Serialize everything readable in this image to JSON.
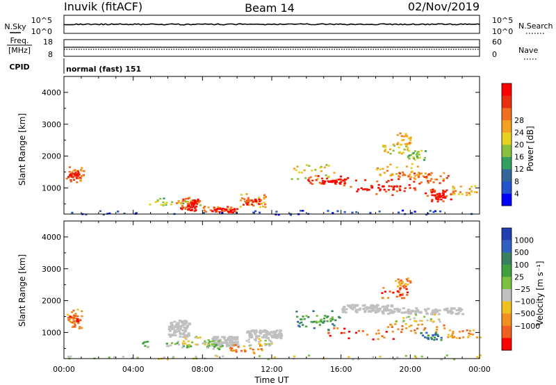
{
  "header": {
    "station": "Inuvik (fitACF)",
    "beam": "Beam 14",
    "date": "02/Nov/2019"
  },
  "nsky_panel": {
    "left_label": "N.Sky",
    "left_ticks": [
      "10^5",
      "10^0"
    ],
    "right_label": "N.Search",
    "right_ticks": [
      "10^5",
      "10^0"
    ]
  },
  "freq_panel": {
    "left_label_line1": "Freq.",
    "left_label_line2": "[MHz]",
    "left_ticks": [
      "18",
      "8"
    ],
    "right_label": "Nave",
    "right_ticks": [
      "60",
      "0"
    ]
  },
  "cpid": {
    "label": "CPID",
    "value": "normal (fast) 151"
  },
  "colors": {
    "background": "#ffffff",
    "axis": "#000000",
    "gray_scatter": "#c0c0c0"
  },
  "chart_data": [
    {
      "type": "heatmap",
      "panel": "power",
      "ylabel": "Slant Range [km]",
      "xlabel": "",
      "x_ticks": [
        "00:00",
        "04:00",
        "08:00",
        "12:00",
        "16:00",
        "20:00",
        "00:00"
      ],
      "x_range_hours": [
        0,
        24
      ],
      "y_ticks": [
        1000,
        2000,
        3000,
        4000
      ],
      "ylim": [
        180,
        4500
      ],
      "colorbar": {
        "label": "Power [dB]",
        "ticks": [
          "4",
          "8",
          "12",
          "16",
          "20",
          "24",
          "28"
        ],
        "colors": [
          "#0000ff",
          "#2255cc",
          "#336699",
          "#33a060",
          "#88c040",
          "#e8d020",
          "#f4a020",
          "#f07020",
          "#e83010",
          "#ff0000"
        ]
      },
      "regions": [
        {
          "t": [
            0.1,
            1.1
          ],
          "r": [
            1150,
            1750
          ],
          "level": 7
        },
        {
          "t": [
            0.2,
            0.9
          ],
          "r": [
            1300,
            1550
          ],
          "level": 8
        },
        {
          "t": [
            4.5,
            7.9
          ],
          "r": [
            480,
            700
          ],
          "level": 4
        },
        {
          "t": [
            6.4,
            7.8
          ],
          "r": [
            520,
            640
          ],
          "level": 6
        },
        {
          "t": [
            6.7,
            7.7
          ],
          "r": [
            350,
            750
          ],
          "level": 8
        },
        {
          "t": [
            7.1,
            7.6
          ],
          "r": [
            300,
            600
          ],
          "level": 9
        },
        {
          "t": [
            8.0,
            10.0
          ],
          "r": [
            250,
            450
          ],
          "level": 7
        },
        {
          "t": [
            8.5,
            9.8
          ],
          "r": [
            260,
            380
          ],
          "level": 9
        },
        {
          "t": [
            10.0,
            11.7
          ],
          "r": [
            400,
            850
          ],
          "level": 6
        },
        {
          "t": [
            10.3,
            11.3
          ],
          "r": [
            500,
            700
          ],
          "level": 8
        },
        {
          "t": [
            13.1,
            16.0
          ],
          "r": [
            1300,
            1800
          ],
          "level": 5
        },
        {
          "t": [
            14.0,
            16.5
          ],
          "r": [
            1100,
            1400
          ],
          "level": 8
        },
        {
          "t": [
            14.8,
            16.2
          ],
          "r": [
            1150,
            1300
          ],
          "level": 9
        },
        {
          "t": [
            16.5,
            20.5
          ],
          "r": [
            800,
            1300
          ],
          "level": 8
        },
        {
          "t": [
            17.0,
            19.5
          ],
          "r": [
            900,
            1100
          ],
          "level": 9
        },
        {
          "t": [
            18.0,
            20.5
          ],
          "r": [
            1400,
            1800
          ],
          "level": 6
        },
        {
          "t": [
            18.8,
            21.3
          ],
          "r": [
            1300,
            1500
          ],
          "level": 7
        },
        {
          "t": [
            20.2,
            22.2
          ],
          "r": [
            1150,
            1500
          ],
          "level": 7
        },
        {
          "t": [
            20.8,
            22.3
          ],
          "r": [
            600,
            1000
          ],
          "level": 8
        },
        {
          "t": [
            21.2,
            22.0
          ],
          "r": [
            650,
            850
          ],
          "level": 9
        },
        {
          "t": [
            22.2,
            23.9
          ],
          "r": [
            800,
            1100
          ],
          "level": 6
        },
        {
          "t": [
            18.3,
            19.8
          ],
          "r": [
            2100,
            2400
          ],
          "level": 5
        },
        {
          "t": [
            19.1,
            20.0
          ],
          "r": [
            2400,
            2750
          ],
          "level": 6
        },
        {
          "t": [
            19.8,
            20.9
          ],
          "r": [
            1900,
            2200
          ],
          "level": 4
        },
        {
          "t": [
            0.0,
            24.0
          ],
          "r": [
            180,
            320
          ],
          "level": 1
        }
      ]
    },
    {
      "type": "heatmap",
      "panel": "velocity",
      "ylabel": "Slant Range [km]",
      "xlabel": "Time UT",
      "x_ticks": [
        "00:00",
        "04:00",
        "08:00",
        "12:00",
        "16:00",
        "20:00",
        "00:00"
      ],
      "x_range_hours": [
        0,
        24
      ],
      "y_ticks": [
        1000,
        2000,
        3000,
        4000
      ],
      "ylim": [
        180,
        4500
      ],
      "colorbar": {
        "label": "Velocity [m s⁻¹]",
        "ticks": [
          "1000",
          "500",
          "100",
          "25",
          "−25",
          "−100",
          "−500",
          "−1000"
        ],
        "colors": [
          "#2040b0",
          "#3060c0",
          "#3a8060",
          "#40a040",
          "#7cc040",
          "#c0c0c0",
          "#f0c020",
          "#f09020",
          "#f06020",
          "#ff0000"
        ]
      },
      "regions": [
        {
          "t": [
            0.1,
            1.1
          ],
          "r": [
            1150,
            1750
          ],
          "level": 7
        },
        {
          "t": [
            0.2,
            0.9
          ],
          "r": [
            1300,
            1550
          ],
          "level": 8
        },
        {
          "t": [
            4.5,
            7.5
          ],
          "r": [
            550,
            750
          ],
          "level": 4
        },
        {
          "t": [
            6.5,
            8.5
          ],
          "r": [
            600,
            900
          ],
          "level": 5
        },
        {
          "t": [
            8.0,
            9.5
          ],
          "r": [
            500,
            800
          ],
          "level": 4
        },
        {
          "t": [
            9.5,
            11.5
          ],
          "r": [
            350,
            650
          ],
          "level": 7
        },
        {
          "t": [
            10.5,
            12.0
          ],
          "r": [
            600,
            850
          ],
          "level": 5
        },
        {
          "t": [
            13.1,
            16.0
          ],
          "r": [
            1100,
            1700
          ],
          "level": 2
        },
        {
          "t": [
            13.5,
            15.5
          ],
          "r": [
            1300,
            1550
          ],
          "level": 3
        },
        {
          "t": [
            15.0,
            19.5
          ],
          "r": [
            800,
            1200
          ],
          "level": 8
        },
        {
          "t": [
            18.0,
            22.0
          ],
          "r": [
            1000,
            1300
          ],
          "level": 7
        },
        {
          "t": [
            19.0,
            21.8
          ],
          "r": [
            1350,
            1600
          ],
          "level": 5
        },
        {
          "t": [
            20.5,
            21.8
          ],
          "r": [
            750,
            1050
          ],
          "level": 2
        },
        {
          "t": [
            22.0,
            24.0
          ],
          "r": [
            850,
            1100
          ],
          "level": 7
        },
        {
          "t": [
            18.3,
            19.8
          ],
          "r": [
            2100,
            2450
          ],
          "level": 8
        },
        {
          "t": [
            19.1,
            20.0
          ],
          "r": [
            2450,
            2750
          ],
          "level": 7
        },
        {
          "t": [
            0.0,
            24.0
          ],
          "r": [
            180,
            320
          ],
          "level": 5
        }
      ],
      "gray_regions": [
        {
          "t": [
            6.0,
            7.2
          ],
          "r": [
            900,
            1400
          ]
        },
        {
          "t": [
            8.5,
            10.0
          ],
          "r": [
            600,
            900
          ]
        },
        {
          "t": [
            10.5,
            12.5
          ],
          "r": [
            850,
            1100
          ]
        },
        {
          "t": [
            18.0,
            23.0
          ],
          "r": [
            1600,
            1800
          ]
        },
        {
          "t": [
            16.0,
            19.0
          ],
          "r": [
            1650,
            1900
          ]
        }
      ]
    }
  ]
}
